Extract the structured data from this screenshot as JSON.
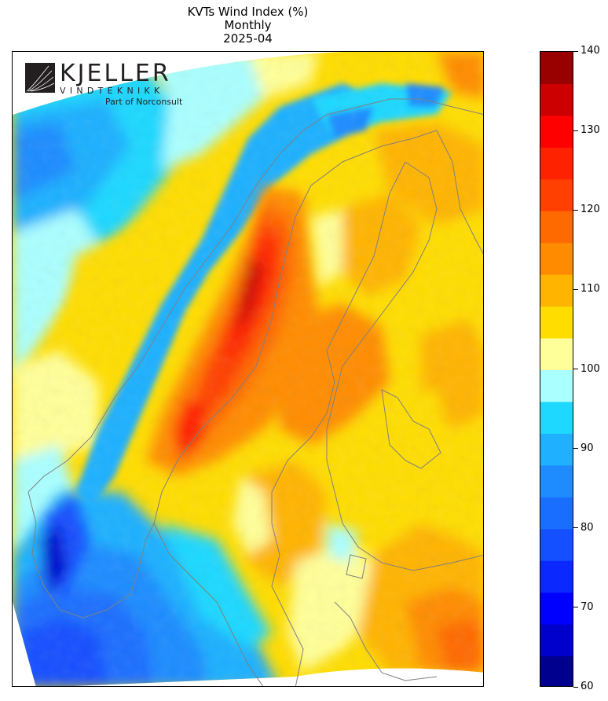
{
  "title": {
    "line1": "KVTs Wind Index (%)",
    "line2": "Monthly",
    "line3": "2025-04"
  },
  "logo": {
    "wordmark": "KJELLER",
    "subtitle": "VINDTEKNIKK",
    "tagline": "Part of Norconsult"
  },
  "colorbar": {
    "min": 60,
    "max": 140,
    "step": 5,
    "ticks": [
      "60",
      "70",
      "80",
      "90",
      "100",
      "110",
      "120",
      "130",
      "140"
    ],
    "colors": [
      "#00008f",
      "#0000cc",
      "#0000ff",
      "#0a28ff",
      "#1450ff",
      "#1a6eff",
      "#1e8cff",
      "#1fb0ff",
      "#1fd8ff",
      "#aaffff",
      "#ffff99",
      "#ffdd00",
      "#ffb400",
      "#ff8c00",
      "#ff6a00",
      "#ff4000",
      "#ff2200",
      "#ff0000",
      "#cc0000",
      "#990000"
    ]
  },
  "map": {
    "region": "Scandinavia and Finland",
    "land_border_color": "#808080"
  }
}
